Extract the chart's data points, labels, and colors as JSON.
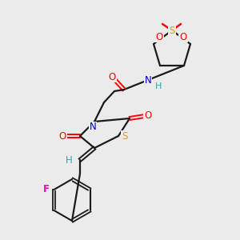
{
  "bg_color": "#ebebeb",
  "bond_color": "#1a1a1a",
  "colors": {
    "O": "#ff0000",
    "N": "#0000cc",
    "S": "#ccaa00",
    "F": "#ff00aa",
    "H": "#22aaaa",
    "C": "#1a1a1a"
  },
  "figsize": [
    3.0,
    3.0
  ],
  "dpi": 100
}
